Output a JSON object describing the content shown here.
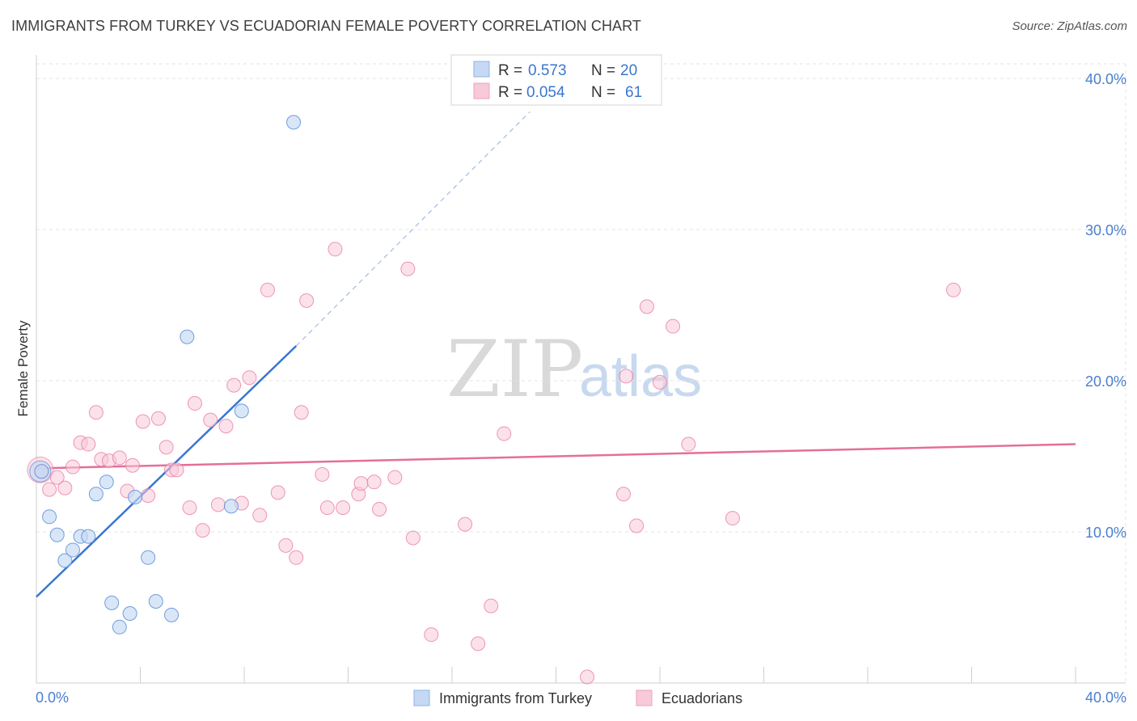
{
  "title": "IMMIGRANTS FROM TURKEY VS ECUADORIAN FEMALE POVERTY CORRELATION CHART",
  "source": "Source: ZipAtlas.com",
  "watermark": {
    "zip": "ZIP",
    "atlas": "atlas"
  },
  "colors": {
    "blue": "#5b8fd6",
    "blue_fill": "#c5d9f4",
    "pink": "#e8779d",
    "pink_fill": "#f8c9d8",
    "blue_line": "#3a76d0",
    "pink_line": "#e46f98"
  },
  "legend_top": {
    "blue": {
      "r_label": "R = ",
      "r_value": "0.573",
      "n_label": "N = ",
      "n_value": "20"
    },
    "pink": {
      "r_label": "R = ",
      "r_value": "0.054",
      "n_label": "N = ",
      "n_value": "61"
    }
  },
  "chart_data": {
    "type": "scatter",
    "title": "IMMIGRANTS FROM TURKEY VS ECUADORIAN FEMALE POVERTY CORRELATION CHART",
    "xlabel": "",
    "ylabel": "Female Poverty",
    "xlim": [
      0,
      40
    ],
    "ylim": [
      0,
      40
    ],
    "x_tick_labels": [
      "0.0%",
      "40.0%"
    ],
    "y_ticks": [
      10,
      20,
      30,
      40
    ],
    "y_tick_labels": [
      "10.0%",
      "20.0%",
      "30.0%",
      "40.0%"
    ],
    "grid": true,
    "legend": [
      "Immigrants from Turkey",
      "Ecuadorians"
    ],
    "series": [
      {
        "name": "Immigrants from Turkey",
        "points": [
          [
            0.2,
            14.0
          ],
          [
            0.5,
            11.0
          ],
          [
            0.8,
            9.8
          ],
          [
            1.1,
            8.1
          ],
          [
            1.4,
            8.8
          ],
          [
            1.7,
            9.7
          ],
          [
            2.0,
            9.7
          ],
          [
            2.3,
            12.5
          ],
          [
            2.7,
            13.3
          ],
          [
            2.9,
            5.3
          ],
          [
            3.2,
            3.7
          ],
          [
            3.6,
            4.6
          ],
          [
            3.8,
            12.3
          ],
          [
            4.3,
            8.3
          ],
          [
            4.6,
            5.4
          ],
          [
            5.2,
            4.5
          ],
          [
            5.8,
            22.9
          ],
          [
            7.5,
            11.7
          ],
          [
            7.9,
            18.0
          ],
          [
            9.9,
            37.1
          ]
        ],
        "trend": {
          "x": [
            0,
            10.0
          ],
          "y": [
            5.7,
            22.3
          ],
          "dashed_to": [
            19.0,
            37.8
          ]
        }
      },
      {
        "name": "Ecuadorians",
        "points": [
          [
            0.2,
            14.0
          ],
          [
            0.5,
            12.8
          ],
          [
            0.8,
            13.6
          ],
          [
            1.1,
            12.9
          ],
          [
            1.4,
            14.3
          ],
          [
            1.7,
            15.9
          ],
          [
            2.0,
            15.8
          ],
          [
            2.3,
            17.9
          ],
          [
            2.5,
            14.8
          ],
          [
            2.8,
            14.7
          ],
          [
            3.2,
            14.9
          ],
          [
            3.5,
            12.7
          ],
          [
            3.7,
            14.4
          ],
          [
            4.1,
            17.3
          ],
          [
            4.3,
            12.4
          ],
          [
            4.7,
            17.5
          ],
          [
            5.0,
            15.6
          ],
          [
            5.2,
            14.1
          ],
          [
            5.4,
            14.1
          ],
          [
            5.9,
            11.6
          ],
          [
            6.1,
            18.5
          ],
          [
            6.4,
            10.1
          ],
          [
            6.7,
            17.4
          ],
          [
            7.0,
            11.8
          ],
          [
            7.3,
            17.0
          ],
          [
            7.6,
            19.7
          ],
          [
            7.9,
            11.9
          ],
          [
            8.2,
            20.2
          ],
          [
            8.6,
            11.1
          ],
          [
            8.9,
            26.0
          ],
          [
            9.3,
            12.6
          ],
          [
            9.6,
            9.1
          ],
          [
            10.0,
            8.3
          ],
          [
            10.2,
            17.9
          ],
          [
            10.4,
            25.3
          ],
          [
            11.0,
            13.8
          ],
          [
            11.2,
            11.6
          ],
          [
            11.5,
            28.7
          ],
          [
            11.8,
            11.6
          ],
          [
            12.4,
            12.5
          ],
          [
            12.5,
            13.2
          ],
          [
            13.0,
            13.3
          ],
          [
            13.2,
            11.5
          ],
          [
            13.8,
            13.6
          ],
          [
            14.3,
            27.4
          ],
          [
            14.5,
            9.6
          ],
          [
            15.2,
            3.2
          ],
          [
            16.5,
            10.5
          ],
          [
            17.0,
            2.6
          ],
          [
            17.5,
            5.1
          ],
          [
            18.0,
            16.5
          ],
          [
            21.2,
            0.4
          ],
          [
            22.6,
            12.5
          ],
          [
            22.7,
            20.3
          ],
          [
            23.1,
            10.4
          ],
          [
            23.5,
            24.9
          ],
          [
            24.0,
            19.9
          ],
          [
            24.5,
            23.6
          ],
          [
            25.1,
            15.8
          ],
          [
            26.8,
            10.9
          ],
          [
            35.3,
            26.0
          ]
        ],
        "trend": {
          "x": [
            0,
            40
          ],
          "y": [
            14.2,
            15.8
          ]
        }
      }
    ]
  }
}
